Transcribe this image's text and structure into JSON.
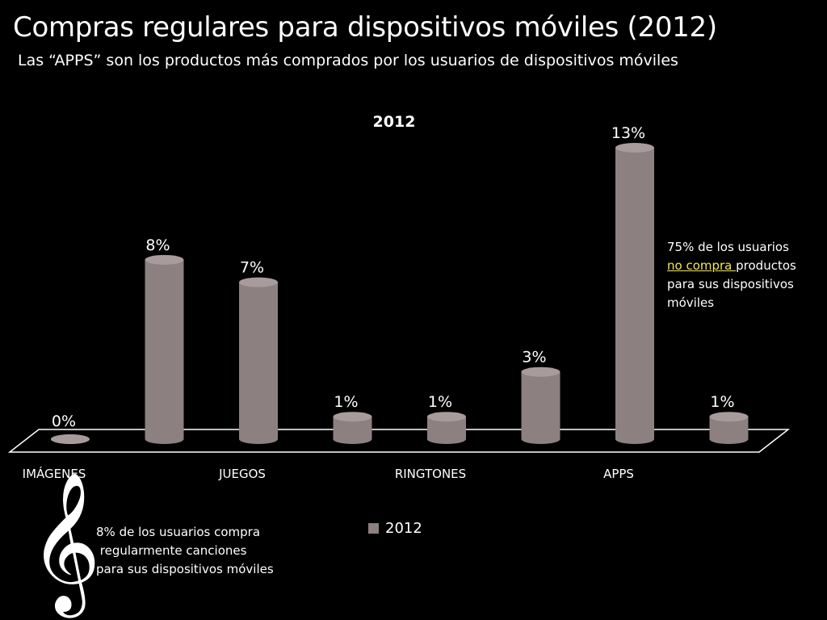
{
  "slide": {
    "title": "Compras regulares para dispositivos móviles (2012)",
    "subtitle": "Las “APPS” son los productos más comprados por los usuarios de dispositivos móviles"
  },
  "chart_data": {
    "type": "bar",
    "title": "2012",
    "categories": [
      "IMÁGENES",
      "",
      "JUEGOS",
      "",
      "RINGTONES",
      "",
      "APPS",
      ""
    ],
    "visible_tick_labels": [
      "IMÁGENES",
      "JUEGOS",
      "RINGTONES",
      "APPS"
    ],
    "series": [
      {
        "name": "2012",
        "values": [
          0,
          8,
          7,
          1,
          1,
          3,
          13,
          1
        ],
        "labels": [
          "0%",
          "8%",
          "7%",
          "1%",
          "1%",
          "3%",
          "13%",
          "1%"
        ]
      }
    ],
    "ylim": [
      0,
      13
    ],
    "grid": false,
    "legend": "bottom",
    "colors": {
      "bar": "#8c8080",
      "bar_top": "#a79b9b",
      "floor": "#ffffff",
      "background": "#000000"
    }
  },
  "notes": {
    "apps": {
      "pre": "75% de los usuarios",
      "highlight": "no compra ",
      "post": "productos para sus dispositivos móviles"
    },
    "music": {
      "line1": "8% de los usuarios compra",
      "line2": " regularmente canciones",
      "line3": "para sus dispositivos móviles"
    }
  },
  "icons": {
    "clef": "treble-clef-icon",
    "clef_glyph": "𝄞"
  },
  "legend": {
    "label": "2012"
  }
}
